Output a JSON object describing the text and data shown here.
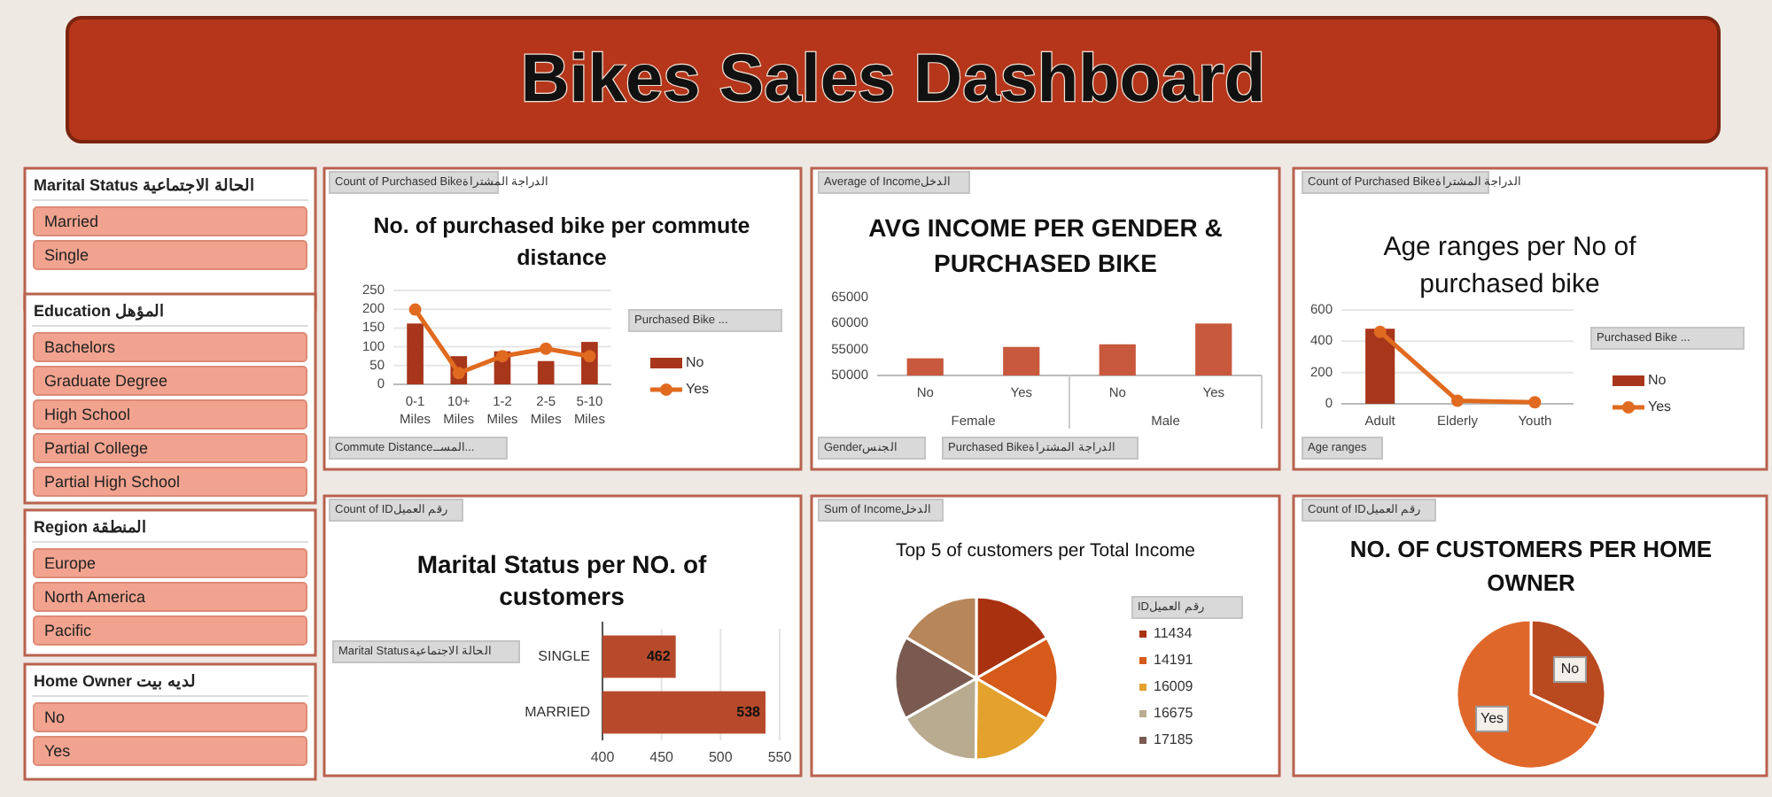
{
  "chart_data": [
    {
      "type": "other",
      "title": "Bikes Sales Dashboard"
    },
    {
      "type": "other",
      "title": "Marital Status الحالة الاجتماعية",
      "categories": [
        "Married",
        "Single"
      ]
    },
    {
      "type": "other",
      "title": "Education المؤهل",
      "categories": [
        "Bachelors",
        "Graduate Degree",
        "High School",
        "Partial College",
        "Partial High School"
      ]
    },
    {
      "type": "other",
      "title": "Region المنطقة",
      "categories": [
        "Europe",
        "North America",
        "Pacific"
      ]
    },
    {
      "type": "other",
      "title": "Home Owner لديه بيت",
      "categories": [
        "No",
        "Yes"
      ]
    },
    {
      "type": "bar",
      "title": "No. of purchased bike per commute distance",
      "categories": [
        "0-1 Miles",
        "10+ Miles",
        "1-2 Miles",
        "2-5 Miles",
        "5-10 Miles"
      ],
      "ylim": [
        0,
        250
      ],
      "yticks": [
        0,
        50,
        100,
        150,
        200,
        250
      ],
      "grid": "y",
      "legend": "right",
      "legend_title": "Purchased Bike ...",
      "marker": "circle",
      "annotations": [
        "Count of Purchased Bikeالدراجة المشتراة",
        "Commute Distanceالمســ..."
      ],
      "series": [
        {
          "name": "No",
          "type": "bar",
          "color": "#a8361b",
          "values": [
            162,
            75,
            88,
            62,
            113
          ]
        },
        {
          "name": "Yes",
          "type": "line",
          "color": "#e06a1f",
          "values": [
            199,
            30,
            75,
            95,
            75
          ]
        }
      ]
    },
    {
      "type": "bar",
      "title": "AVG INCOME PER GENDER & PURCHASED BIKE",
      "categories": [
        "No",
        "Yes",
        "No",
        "Yes"
      ],
      "ylim": [
        50000,
        65000
      ],
      "yticks": [
        50000,
        55000,
        60000,
        65000
      ],
      "values": [
        53300,
        55500,
        56000,
        60000
      ],
      "color": "#c8593c",
      "annotations": [
        "Average of Incomeالدخل",
        "Female",
        "Male",
        "Genderالجنس",
        "Purchased Bikeالدراجة المشتراة"
      ]
    },
    {
      "type": "bar",
      "title": "Age ranges per No of purchased bike",
      "categories": [
        "Adult",
        "Elderly",
        "Youth"
      ],
      "ylim": [
        0,
        600
      ],
      "yticks": [
        0,
        200,
        400,
        600
      ],
      "grid": "y",
      "legend": "right",
      "legend_title": "Purchased Bike ...",
      "marker": "circle",
      "annotations": [
        "Count of Purchased Bikeالدراجة المشتراة",
        "Age ranges"
      ],
      "series": [
        {
          "name": "No",
          "type": "bar",
          "color": "#a8361b",
          "values": [
            480,
            null,
            0
          ]
        },
        {
          "name": "Yes",
          "type": "line",
          "color": "#e06a1f",
          "values": [
            460,
            20,
            10
          ]
        }
      ]
    },
    {
      "type": "bar",
      "orientation": "horizontal",
      "title": "Marital Status per NO. of customers",
      "categories": [
        "SINGLE",
        "MARRIED"
      ],
      "values": [
        462,
        538
      ],
      "color": "#b84a2c",
      "data_labels": true,
      "xlim": [
        400,
        550
      ],
      "xticks": [
        400,
        450,
        500,
        550
      ],
      "grid": "x",
      "annotations": [
        "Count of IDرقم العميل",
        "Marital Statusالحالة الاجتماعية"
      ]
    },
    {
      "type": "pie",
      "title": "Top 5 of customers per Total Income",
      "categories": [
        "11434",
        "14191",
        "16009",
        "16675",
        "17185",
        null
      ],
      "values": [
        16.7,
        16.7,
        16.7,
        16.7,
        16.6,
        16.6
      ],
      "colors": [
        "#a8320f",
        "#d65a1a",
        "#e3a12d",
        "#b9ab90",
        "#7a5a50",
        "#b7865a"
      ],
      "legend": "right",
      "legend_title": "IDرقم العميل",
      "annotations": [
        "Sum of Incomeالدخل"
      ]
    },
    {
      "type": "pie",
      "title": "NO. OF CUSTOMERS PER HOME OWNER",
      "categories": [
        "No",
        "Yes"
      ],
      "values": [
        32,
        68
      ],
      "colors": [
        "#b94a20",
        "#e0672a"
      ],
      "annotations": [
        "Count of IDرقم العميل"
      ]
    }
  ]
}
